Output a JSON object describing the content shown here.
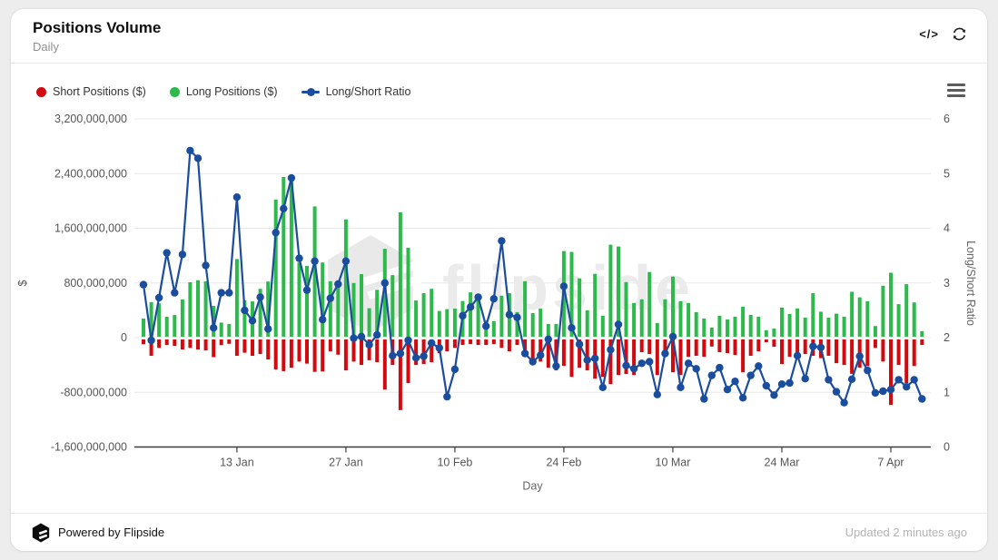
{
  "header": {
    "title": "Positions Volume",
    "subtitle": "Daily",
    "embed_icon_label": "</>"
  },
  "legend": [
    {
      "label": "Short Positions ($)",
      "color": "#d20a10",
      "marker": "dot"
    },
    {
      "label": "Long Positions ($)",
      "color": "#2eb94d",
      "marker": "dot"
    },
    {
      "label": "Long/Short Ratio",
      "color": "#1a4d9e",
      "marker": "line-dot"
    }
  ],
  "watermark": {
    "text": "flipside"
  },
  "footer": {
    "powered_by": "Powered by Flipside",
    "updated": "Updated 2 minutes ago"
  },
  "chart_data": {
    "type": "combo-bar-line",
    "title": "Positions Volume",
    "xlabel": "Day",
    "ylabel_left": "$",
    "ylabel_right": "Long/Short Ratio",
    "ylim_left_musd": [
      -1600,
      3200
    ],
    "ylim_right": [
      0,
      6
    ],
    "yticks_left_musd": [
      3200,
      2400,
      1600,
      800,
      0,
      -800,
      -1600
    ],
    "yticks_right": [
      6,
      5,
      4,
      3,
      2,
      1,
      0
    ],
    "grid": true,
    "n_points": 101,
    "x_start": "1 Jan",
    "x_ticks": [
      {
        "index": 12,
        "label": "13 Jan"
      },
      {
        "index": 26,
        "label": "27 Jan"
      },
      {
        "index": 40,
        "label": "10 Feb"
      },
      {
        "index": 54,
        "label": "24 Feb"
      },
      {
        "index": 68,
        "label": "10 Mar"
      },
      {
        "index": 82,
        "label": "24 Mar"
      },
      {
        "index": 96,
        "label": "7 Apr"
      }
    ],
    "series": [
      {
        "name": "Short Positions ($)",
        "type": "bar",
        "axis": "left",
        "color": "#d20a10",
        "values_musd": [
          -95,
          -265,
          -150,
          -107,
          -120,
          -173,
          -150,
          -173,
          -187,
          -285,
          -110,
          -90,
          -265,
          -220,
          -265,
          -240,
          -320,
          -465,
          -490,
          -440,
          -350,
          -380,
          -500,
          -495,
          -200,
          -250,
          -480,
          -350,
          -400,
          -330,
          -360,
          -760,
          -400,
          -1060,
          -665,
          -400,
          -385,
          -360,
          -227,
          -200,
          -150,
          -107,
          -93,
          -107,
          -107,
          -93,
          -150,
          -200,
          -107,
          -227,
          -400,
          -350,
          -440,
          -480,
          -413,
          -573,
          -440,
          -480,
          -600,
          -573,
          -680,
          -547,
          -533,
          -547,
          -213,
          -240,
          -547,
          -240,
          -507,
          -547,
          -280,
          -265,
          -280,
          -130,
          -213,
          -227,
          -253,
          -507,
          -265,
          -200,
          -67,
          -133,
          -387,
          -280,
          -280,
          -240,
          -265,
          -300,
          -265,
          -373,
          -400,
          -530,
          -440,
          -415,
          -150,
          -350,
          -985,
          -400,
          -665,
          -415,
          -107
        ]
      },
      {
        "name": "Long Positions ($)",
        "type": "bar",
        "axis": "left",
        "color": "#2eb94d",
        "values_musd": [
          280,
          520,
          500,
          305,
          330,
          560,
          810,
          840,
          825,
          465,
          220,
          200,
          1150,
          545,
          530,
          715,
          820,
          2020,
          2350,
          2310,
          1100,
          1050,
          1920,
          1100,
          825,
          785,
          1730,
          800,
          930,
          430,
          700,
          1300,
          915,
          1835,
          1315,
          545,
          650,
          715,
          390,
          417,
          425,
          535,
          663,
          600,
          250,
          240,
          613,
          650,
          373,
          825,
          360,
          425,
          200,
          200,
          1267,
          1253,
          867,
          400,
          933,
          320,
          1360,
          1333,
          813,
          507,
          560,
          960,
          213,
          560,
          893,
          533,
          507,
          373,
          280,
          147,
          320,
          267,
          307,
          453,
          333,
          307,
          107,
          133,
          440,
          347,
          427,
          293,
          650,
          380,
          293,
          350,
          307,
          670,
          590,
          533,
          170,
          760,
          950,
          490,
          782,
          515,
          95
        ]
      },
      {
        "name": "Long/Short Ratio",
        "type": "line",
        "axis": "right",
        "color": "#1a4d9e",
        "values": [
          2.97,
          1.95,
          2.73,
          3.55,
          2.82,
          3.52,
          5.42,
          5.28,
          3.32,
          2.18,
          2.82,
          2.82,
          4.57,
          2.5,
          2.31,
          2.74,
          2.16,
          3.92,
          4.36,
          4.92,
          3.45,
          2.87,
          3.4,
          2.33,
          2.72,
          2.98,
          3.4,
          1.99,
          2.02,
          1.87,
          2.05,
          3.0,
          1.67,
          1.71,
          1.95,
          1.63,
          1.66,
          1.9,
          1.81,
          0.92,
          1.42,
          2.4,
          2.56,
          2.74,
          2.21,
          2.71,
          3.77,
          2.42,
          2.37,
          1.71,
          1.56,
          1.68,
          1.97,
          1.48,
          2.94,
          2.18,
          1.88,
          1.59,
          1.62,
          1.09,
          1.78,
          2.24,
          1.49,
          1.43,
          1.53,
          1.56,
          0.96,
          1.71,
          2.02,
          1.09,
          1.53,
          1.43,
          0.88,
          1.31,
          1.45,
          1.05,
          1.2,
          0.9,
          1.31,
          1.48,
          1.12,
          0.95,
          1.15,
          1.17,
          1.67,
          1.25,
          1.84,
          1.82,
          1.23,
          1.01,
          0.81,
          1.24,
          1.66,
          1.4,
          0.99,
          1.02,
          1.05,
          1.23,
          1.1,
          1.23,
          0.88
        ]
      }
    ],
    "legend_position": "top-left"
  }
}
